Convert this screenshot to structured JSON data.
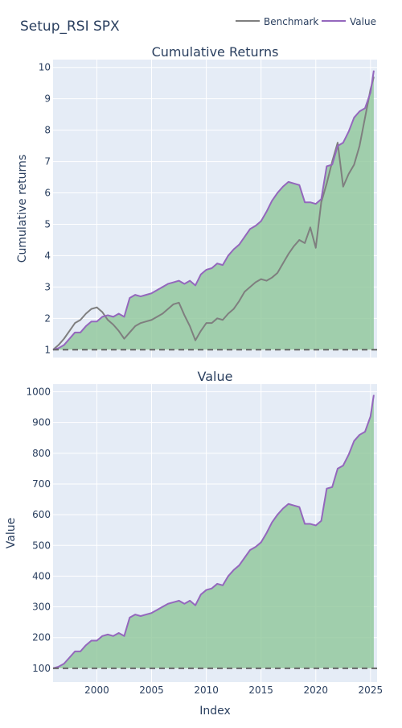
{
  "title": "Setup_RSI SPX",
  "legend": [
    {
      "name": "Benchmark",
      "color": "#7f7f7f"
    },
    {
      "name": "Value",
      "color": "#9467bd"
    }
  ],
  "colors": {
    "plot_bg": "#e5ecf6",
    "grid": "#ffffff",
    "fill": "#8fc79a",
    "benchmark": "#7f7f7f",
    "value": "#9467bd",
    "baseline": "#666666"
  },
  "chart_data": [
    {
      "type": "area",
      "title": "Cumulative Returns",
      "xlabel": "",
      "ylabel": "Cumulative returns",
      "xlim": [
        1996.0,
        2025.6
      ],
      "ylim": [
        0.75,
        10.25
      ],
      "xticks": [
        2000,
        2005,
        2010,
        2015,
        2020,
        2025
      ],
      "yticks": [
        1,
        2,
        3,
        4,
        5,
        6,
        7,
        8,
        9,
        10
      ],
      "baseline": 1,
      "grid": true,
      "series": [
        {
          "name": "Value",
          "x": [
            1996.0,
            1996.5,
            1997.0,
            1997.5,
            1998.0,
            1998.5,
            1999.0,
            1999.5,
            2000.0,
            2000.5,
            2001.0,
            2001.5,
            2002.0,
            2002.5,
            2003.0,
            2003.5,
            2004.0,
            2004.5,
            2005.0,
            2005.5,
            2006.0,
            2006.5,
            2007.0,
            2007.5,
            2008.0,
            2008.5,
            2009.0,
            2009.5,
            2010.0,
            2010.5,
            2011.0,
            2011.5,
            2012.0,
            2012.5,
            2013.0,
            2013.5,
            2014.0,
            2014.5,
            2015.0,
            2015.5,
            2016.0,
            2016.5,
            2017.0,
            2017.5,
            2018.0,
            2018.5,
            2019.0,
            2019.5,
            2020.0,
            2020.5,
            2021.0,
            2021.5,
            2022.0,
            2022.5,
            2023.0,
            2023.5,
            2024.0,
            2024.5,
            2025.0,
            2025.3
          ],
          "values": [
            1.0,
            1.05,
            1.15,
            1.35,
            1.55,
            1.55,
            1.75,
            1.9,
            1.9,
            2.05,
            2.1,
            2.05,
            2.15,
            2.05,
            2.65,
            2.75,
            2.7,
            2.75,
            2.8,
            2.9,
            3.0,
            3.1,
            3.15,
            3.2,
            3.1,
            3.2,
            3.05,
            3.4,
            3.55,
            3.6,
            3.75,
            3.7,
            4.0,
            4.2,
            4.35,
            4.6,
            4.85,
            4.95,
            5.1,
            5.4,
            5.75,
            6.0,
            6.2,
            6.35,
            6.3,
            6.25,
            5.7,
            5.7,
            5.65,
            5.8,
            6.85,
            6.9,
            7.5,
            7.6,
            7.95,
            8.4,
            8.6,
            8.7,
            9.2,
            9.9
          ]
        },
        {
          "name": "Benchmark",
          "x": [
            1996.0,
            1996.5,
            1997.0,
            1997.5,
            1998.0,
            1998.5,
            1999.0,
            1999.5,
            2000.0,
            2000.5,
            2001.0,
            2001.5,
            2002.0,
            2002.5,
            2003.0,
            2003.5,
            2004.0,
            2004.5,
            2005.0,
            2005.5,
            2006.0,
            2006.5,
            2007.0,
            2007.5,
            2008.0,
            2008.5,
            2009.0,
            2009.5,
            2010.0,
            2010.5,
            2011.0,
            2011.5,
            2012.0,
            2012.5,
            2013.0,
            2013.5,
            2014.0,
            2014.5,
            2015.0,
            2015.5,
            2016.0,
            2016.5,
            2017.0,
            2017.5,
            2018.0,
            2018.5,
            2019.0,
            2019.5,
            2020.0,
            2020.5,
            2021.0,
            2021.5,
            2022.0,
            2022.5,
            2023.0,
            2023.5,
            2024.0,
            2024.5,
            2025.0,
            2025.3
          ],
          "values": [
            1.0,
            1.15,
            1.35,
            1.6,
            1.85,
            1.95,
            2.15,
            2.3,
            2.35,
            2.2,
            1.95,
            1.8,
            1.6,
            1.35,
            1.55,
            1.75,
            1.85,
            1.9,
            1.95,
            2.05,
            2.15,
            2.3,
            2.45,
            2.5,
            2.1,
            1.75,
            1.3,
            1.6,
            1.85,
            1.85,
            2.0,
            1.95,
            2.15,
            2.3,
            2.55,
            2.85,
            3.0,
            3.15,
            3.25,
            3.2,
            3.3,
            3.45,
            3.75,
            4.05,
            4.3,
            4.5,
            4.4,
            4.9,
            4.25,
            5.7,
            6.3,
            7.0,
            7.6,
            6.2,
            6.6,
            6.9,
            7.5,
            8.4,
            9.3,
            9.7
          ]
        }
      ]
    },
    {
      "type": "area",
      "title": "Value",
      "xlabel": "Index",
      "ylabel": "Value",
      "xlim": [
        1996.0,
        2025.6
      ],
      "ylim": [
        55,
        1025
      ],
      "xticks": [
        2000,
        2005,
        2010,
        2015,
        2020,
        2025
      ],
      "yticks": [
        100,
        200,
        300,
        400,
        500,
        600,
        700,
        800,
        900,
        1000
      ],
      "baseline": 100,
      "grid": true,
      "series": [
        {
          "name": "Value",
          "x": [
            1996.0,
            1996.5,
            1997.0,
            1997.5,
            1998.0,
            1998.5,
            1999.0,
            1999.5,
            2000.0,
            2000.5,
            2001.0,
            2001.5,
            2002.0,
            2002.5,
            2003.0,
            2003.5,
            2004.0,
            2004.5,
            2005.0,
            2005.5,
            2006.0,
            2006.5,
            2007.0,
            2007.5,
            2008.0,
            2008.5,
            2009.0,
            2009.5,
            2010.0,
            2010.5,
            2011.0,
            2011.5,
            2012.0,
            2012.5,
            2013.0,
            2013.5,
            2014.0,
            2014.5,
            2015.0,
            2015.5,
            2016.0,
            2016.5,
            2017.0,
            2017.5,
            2018.0,
            2018.5,
            2019.0,
            2019.5,
            2020.0,
            2020.5,
            2021.0,
            2021.5,
            2022.0,
            2022.5,
            2023.0,
            2023.5,
            2024.0,
            2024.5,
            2025.0,
            2025.3
          ],
          "values": [
            100,
            105,
            115,
            135,
            155,
            155,
            175,
            190,
            190,
            205,
            210,
            205,
            215,
            205,
            265,
            275,
            270,
            275,
            280,
            290,
            300,
            310,
            315,
            320,
            310,
            320,
            305,
            340,
            355,
            360,
            375,
            370,
            400,
            420,
            435,
            460,
            485,
            495,
            510,
            540,
            575,
            600,
            620,
            635,
            630,
            625,
            570,
            570,
            565,
            580,
            685,
            690,
            750,
            760,
            795,
            840,
            860,
            870,
            920,
            990
          ]
        }
      ]
    }
  ]
}
